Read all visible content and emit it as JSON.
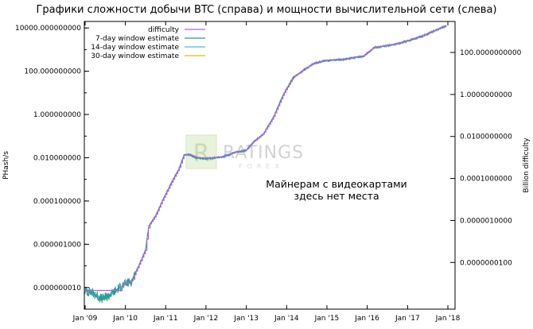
{
  "title": "Графики сложности добычи BTC (справа) и мощности вычислительной сети (слева)",
  "annotation": [
    "Майнерам с видеокартами",
    "здесь нет места"
  ],
  "watermark": {
    "brand": "RATINGS",
    "sub": "FOREX",
    "logo_letter": "R"
  },
  "colors": {
    "difficulty": "#b061e0",
    "w7": "#2a9d8f",
    "w14": "#56b4e9",
    "w30": "#e6b800",
    "axis": "#000000"
  },
  "chart_data": {
    "type": "line",
    "title": "Графики сложности добычи BTC (справа) и мощности вычислительной сети (слева)",
    "xlabel": "",
    "ylabel_left": "PHash/s",
    "ylabel_right": "Billion difficulty",
    "y_scale": "log",
    "grid": false,
    "legend_position": "top-left",
    "x_ticks": [
      "Jan '09",
      "Jan '10",
      "Jan '11",
      "Jan '12",
      "Jan '13",
      "Jan '14",
      "Jan '15",
      "Jan '16",
      "Jan '17",
      "Jan '18"
    ],
    "y_left_ticks": [
      "10000.000000000",
      "100.000000000",
      "1.000000000",
      "0.010000000",
      "0.000100000",
      "0.000001000",
      "0.000000010"
    ],
    "y_right_ticks": [
      "100.0000000000",
      "1.0000000000",
      "0.0100000000",
      "0.0001000000",
      "0.0000010000",
      "0.0000000100"
    ],
    "ylim_left": [
      1e-09,
      20000
    ],
    "ylim_right": [
      6e-11,
      3000
    ],
    "series": [
      {
        "name": "difficulty"
      },
      {
        "name": "7-day window estimate"
      },
      {
        "name": "14-day window estimate"
      },
      {
        "name": "30-day window estimate"
      }
    ],
    "hashrate_phs": [
      [
        "2009-01-01",
        7e-09
      ],
      [
        "2009-03-01",
        6e-09
      ],
      [
        "2009-06-01",
        3e-09
      ],
      [
        "2009-08-01",
        4e-09
      ],
      [
        "2009-10-01",
        7e-09
      ],
      [
        "2009-12-01",
        1.2e-08
      ],
      [
        "2010-03-01",
        2e-08
      ],
      [
        "2010-05-01",
        1e-07
      ],
      [
        "2010-07-01",
        5e-07
      ],
      [
        "2010-08-01",
        7e-06
      ],
      [
        "2010-10-01",
        2e-05
      ],
      [
        "2010-12-01",
        0.0001
      ],
      [
        "2011-03-01",
        0.0008
      ],
      [
        "2011-05-01",
        0.003
      ],
      [
        "2011-06-15",
        0.013
      ],
      [
        "2011-08-01",
        0.014
      ],
      [
        "2011-10-01",
        0.01
      ],
      [
        "2012-01-01",
        0.009
      ],
      [
        "2012-06-01",
        0.011
      ],
      [
        "2012-10-01",
        0.018
      ],
      [
        "2013-01-01",
        0.022
      ],
      [
        "2013-03-01",
        0.05
      ],
      [
        "2013-06-01",
        0.12
      ],
      [
        "2013-09-01",
        0.7
      ],
      [
        "2013-12-01",
        8
      ],
      [
        "2014-03-01",
        50
      ],
      [
        "2014-06-01",
        110
      ],
      [
        "2014-09-01",
        220
      ],
      [
        "2014-12-01",
        300
      ],
      [
        "2015-06-01",
        350
      ],
      [
        "2015-12-01",
        500
      ],
      [
        "2016-03-01",
        1200
      ],
      [
        "2016-09-01",
        1700
      ],
      [
        "2017-01-01",
        2500
      ],
      [
        "2017-06-01",
        4500
      ],
      [
        "2017-12-20",
        13000
      ]
    ]
  }
}
